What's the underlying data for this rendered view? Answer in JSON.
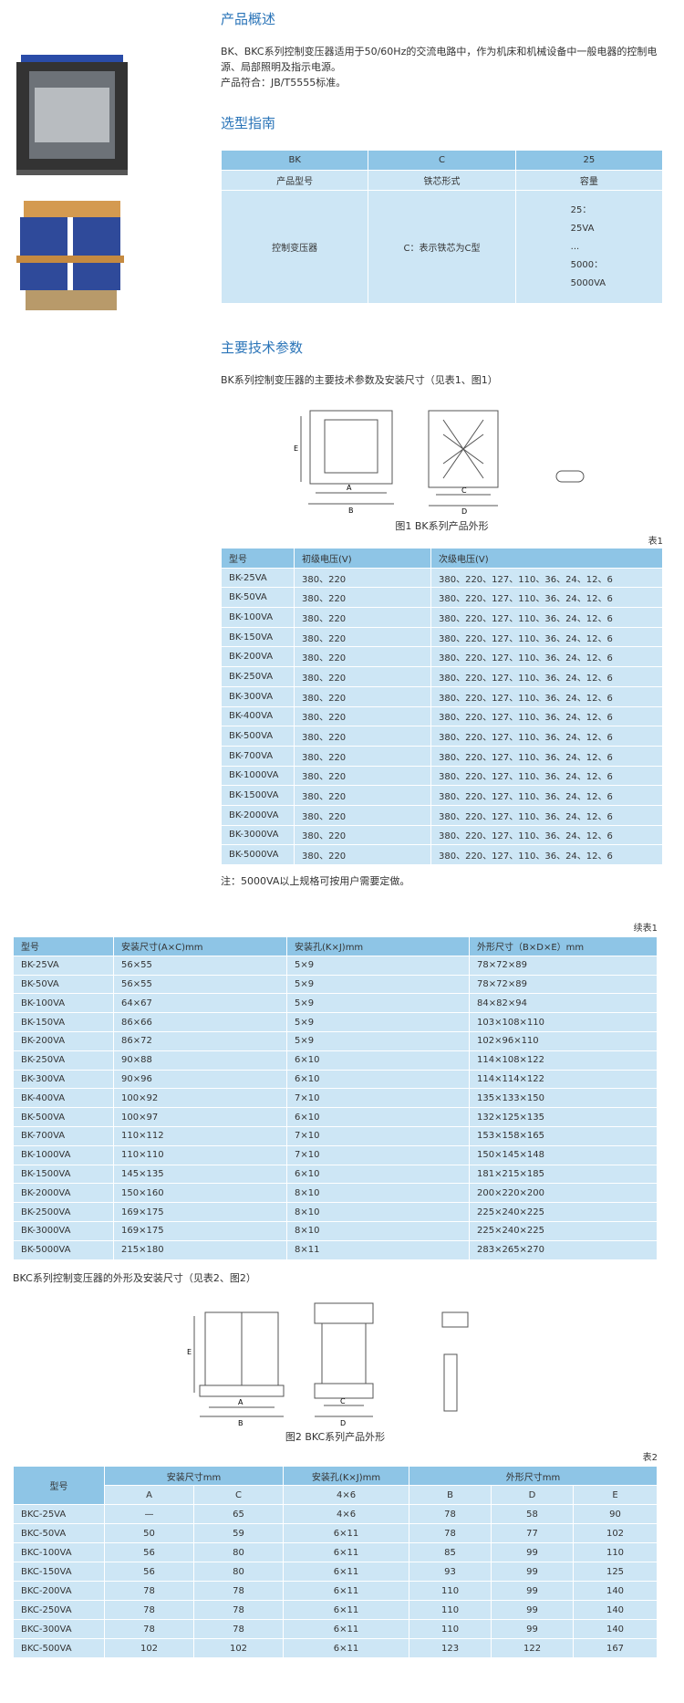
{
  "overview": {
    "title": "产品概述",
    "text": [
      "BK、BKC系列控制变压器适用于50/60Hz的交流电路中，作为机床和机械设备中一般电器的控制电源、局部照明及指示电源。",
      "产品符合：JB/T5555标准。"
    ]
  },
  "selection": {
    "title": "选型指南",
    "header": [
      "BK",
      "C",
      "25"
    ],
    "labels": [
      "产品型号",
      "铁芯形式",
      "容量"
    ],
    "row": [
      "控制变压器",
      "C：表示铁芯为C型",
      [
        "25：",
        "25VA",
        "...",
        "5000：",
        "5000VA"
      ]
    ]
  },
  "params": {
    "title": "主要技术参数",
    "intro": "BK系列控制变压器的主要技术参数及安装尺寸（见表1、图1）",
    "figure_labels": [
      "A",
      "B",
      "C",
      "D",
      "E"
    ],
    "figure_caption": "图1 BK系列产品外形",
    "table_label": "表1",
    "table": {
      "columns": [
        "型号",
        "初级电压(V)",
        "次级电压(V)"
      ],
      "rows": [
        [
          "BK-25VA",
          "380、220",
          "380、220、127、110、36、24、12、6"
        ],
        [
          "BK-50VA",
          "380、220",
          "380、220、127、110、36、24、12、6"
        ],
        [
          "BK-100VA",
          "380、220",
          "380、220、127、110、36、24、12、6"
        ],
        [
          "BK-150VA",
          "380、220",
          "380、220、127、110、36、24、12、6"
        ],
        [
          "BK-200VA",
          "380、220",
          "380、220、127、110、36、24、12、6"
        ],
        [
          "BK-250VA",
          "380、220",
          "380、220、127、110、36、24、12、6"
        ],
        [
          "BK-300VA",
          "380、220",
          "380、220、127、110、36、24、12、6"
        ],
        [
          "BK-400VA",
          "380、220",
          "380、220、127、110、36、24、12、6"
        ],
        [
          "BK-500VA",
          "380、220",
          "380、220、127、110、36、24、12、6"
        ],
        [
          "BK-700VA",
          "380、220",
          "380、220、127、110、36、24、12、6"
        ],
        [
          "BK-1000VA",
          "380、220",
          "380、220、127、110、36、24、12、6"
        ],
        [
          "BK-1500VA",
          "380、220",
          "380、220、127、110、36、24、12、6"
        ],
        [
          "BK-2000VA",
          "380、220",
          "380、220、127、110、36、24、12、6"
        ],
        [
          "BK-3000VA",
          "380、220",
          "380、220、127、110、36、24、12、6"
        ],
        [
          "BK-5000VA",
          "380、220",
          "380、220、127、110、36、24、12、6"
        ]
      ]
    },
    "note": "注：5000VA以上规格可按用户需要定做。"
  },
  "table1_cont": {
    "label": "续表1",
    "columns": [
      "型号",
      "安装尺寸(A×C)mm",
      "安装孔(K×J)mm",
      "外形尺寸（B×D×E）mm"
    ],
    "rows": [
      [
        "BK-25VA",
        "56×55",
        "5×9",
        "78×72×89"
      ],
      [
        "BK-50VA",
        "56×55",
        "5×9",
        "78×72×89"
      ],
      [
        "BK-100VA",
        "64×67",
        "5×9",
        "84×82×94"
      ],
      [
        "BK-150VA",
        "86×66",
        "5×9",
        "103×108×110"
      ],
      [
        "BK-200VA",
        "86×72",
        "5×9",
        "102×96×110"
      ],
      [
        "BK-250VA",
        "90×88",
        "6×10",
        "114×108×122"
      ],
      [
        "BK-300VA",
        "90×96",
        "6×10",
        "114×114×122"
      ],
      [
        "BK-400VA",
        "100×92",
        "7×10",
        "135×133×150"
      ],
      [
        "BK-500VA",
        "100×97",
        "6×10",
        "132×125×135"
      ],
      [
        "BK-700VA",
        "110×112",
        "7×10",
        "153×158×165"
      ],
      [
        "BK-1000VA",
        "110×110",
        "7×10",
        "150×145×148"
      ],
      [
        "BK-1500VA",
        "145×135",
        "6×10",
        "181×215×185"
      ],
      [
        "BK-2000VA",
        "150×160",
        "8×10",
        "200×220×200"
      ],
      [
        "BK-2500VA",
        "169×175",
        "8×10",
        "225×240×225"
      ],
      [
        "BK-3000VA",
        "169×175",
        "8×10",
        "225×240×225"
      ],
      [
        "BK-5000VA",
        "215×180",
        "8×11",
        "283×265×270"
      ]
    ]
  },
  "bkc": {
    "intro": "BKC系列控制变压器的外形及安装尺寸（见表2、图2）",
    "figure_labels": [
      "A",
      "B",
      "C",
      "D",
      "E"
    ],
    "figure_caption": "图2 BKC系列产品外形",
    "table_label": "表2",
    "group_headers": [
      "型号",
      "安装尺寸mm",
      "安装孔(K×J)mm",
      "外形尺寸mm"
    ],
    "sub_headers": [
      "A",
      "C",
      "4×6",
      "B",
      "D",
      "E"
    ],
    "rows": [
      [
        "BKC-25VA",
        "—",
        65,
        "4×6",
        78,
        58,
        90
      ],
      [
        "BKC-50VA",
        50,
        59,
        "6×11",
        78,
        77,
        102
      ],
      [
        "BKC-100VA",
        56,
        80,
        "6×11",
        85,
        99,
        110
      ],
      [
        "BKC-150VA",
        56,
        80,
        "6×11",
        93,
        99,
        125
      ],
      [
        "BKC-200VA",
        78,
        78,
        "6×11",
        110,
        99,
        140
      ],
      [
        "BKC-250VA",
        78,
        78,
        "6×11",
        110,
        99,
        140
      ],
      [
        "BKC-300VA",
        78,
        78,
        "6×11",
        110,
        99,
        140
      ],
      [
        "BKC-500VA",
        102,
        102,
        "6×11",
        123,
        122,
        167
      ]
    ]
  }
}
